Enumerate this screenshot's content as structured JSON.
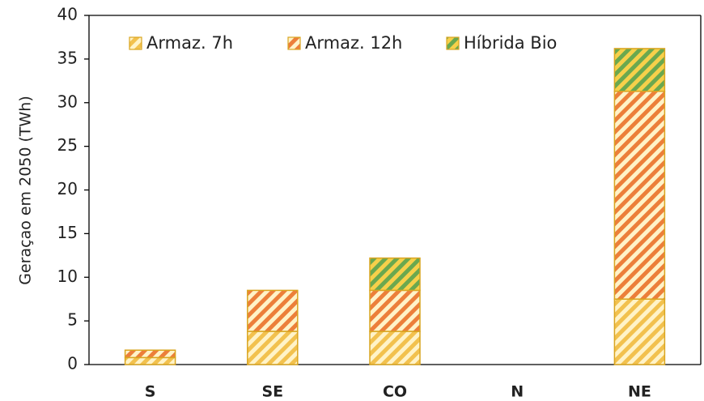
{
  "chart_data": {
    "type": "stacked_bar",
    "y_label": "Geraçao em 2050 (TWh)",
    "categories": [
      "S",
      "SE",
      "CO",
      "N",
      "NE"
    ],
    "series": [
      {
        "name": "Armaz. 7h",
        "color": "#f2c14e",
        "values": [
          0.8,
          3.8,
          3.8,
          0,
          7.5
        ]
      },
      {
        "name": "Armaz. 12h",
        "color": "#ec7f3a",
        "values": [
          0.85,
          4.7,
          4.7,
          0,
          23.8
        ]
      },
      {
        "name": "Híbrida Bio",
        "color": "#6aa84f",
        "values": [
          0,
          0,
          3.7,
          0,
          4.9
        ]
      }
    ],
    "ylim": [
      0,
      40
    ],
    "yticks": [
      0,
      5,
      10,
      15,
      20,
      25,
      30,
      35,
      40
    ],
    "legend": "top-left"
  }
}
